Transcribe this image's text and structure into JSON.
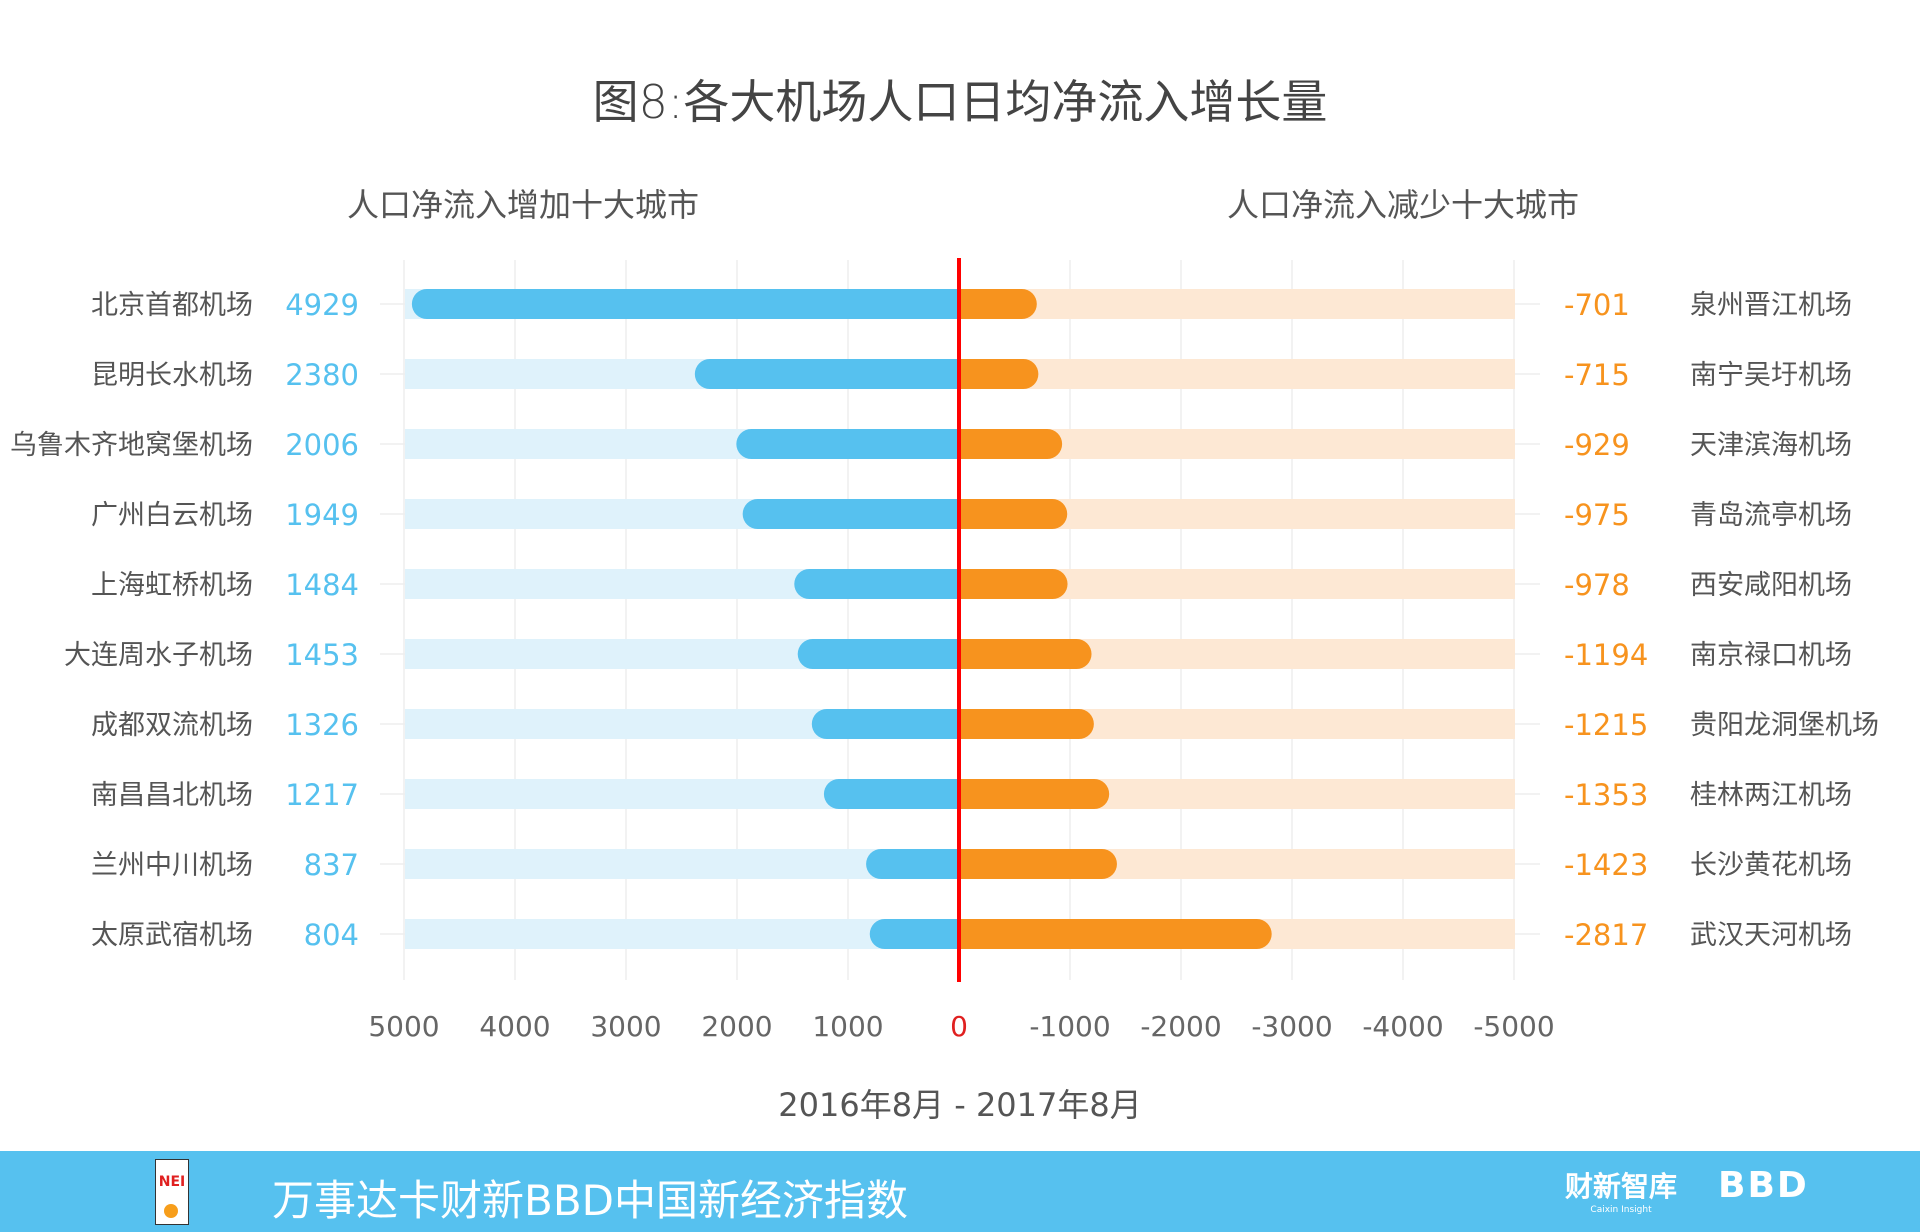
{
  "chart_data": {
    "type": "bar",
    "orientation": "horizontal-diverging",
    "title": "图8:各大机场人口日均净流入增长量",
    "xlabel": "2016年8月 - 2017年8月",
    "xlim": [
      5000,
      -5000
    ],
    "xticks": [
      "5000",
      "4000",
      "3000",
      "2000",
      "1000",
      "0",
      "-1000",
      "-2000",
      "-3000",
      "-4000",
      "-5000"
    ],
    "grid": true,
    "left_panel": {
      "subtitle": "人口净流入增加十大城市",
      "color": "#56c1ef",
      "track_color": "#dff2fb",
      "categories": [
        "北京首都机场",
        "昆明长水机场",
        "乌鲁木齐地窝堡机场",
        "广州白云机场",
        "上海虹桥机场",
        "大连周水子机场",
        "成都双流机场",
        "南昌昌北机场",
        "兰州中川机场",
        "太原武宿机场"
      ],
      "values": [
        4929,
        2380,
        2006,
        1949,
        1484,
        1453,
        1326,
        1217,
        837,
        804
      ]
    },
    "right_panel": {
      "subtitle": "人口净流入减少十大城市",
      "color": "#f7931e",
      "track_color": "#fde8d4",
      "categories": [
        "泉州晋江机场",
        "南宁吴圩机场",
        "天津滨海机场",
        "青岛流亭机场",
        "西安咸阳机场",
        "南京禄口机场",
        "贵阳龙洞堡机场",
        "桂林两江机场",
        "长沙黄花机场",
        "武汉天河机场"
      ],
      "values": [
        -701,
        -715,
        -929,
        -975,
        -978,
        -1194,
        -1215,
        -1353,
        -1423,
        -2817
      ]
    },
    "zero_line_color": "#ff0000"
  },
  "footer": {
    "text": "万事达卡财新BBD中国新经济指数",
    "logo_nei": "NEI",
    "logo_caixin": "财新智库",
    "logo_caixin_sub": "Caixin Insight",
    "logo_bbd": "BBD",
    "background": "#56c1ef"
  }
}
